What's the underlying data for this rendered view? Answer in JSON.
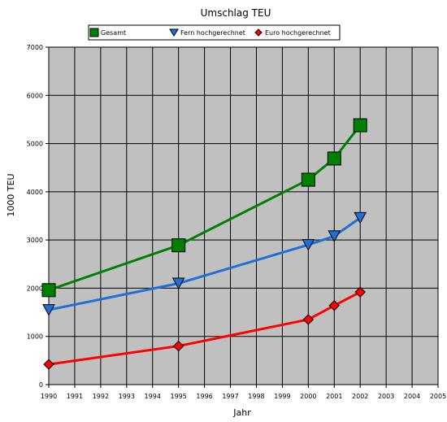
{
  "chart_data": {
    "type": "line",
    "title": "Umschlag TEU",
    "xlabel": "Jahr",
    "ylabel": "1000 TEU",
    "xlim": [
      1990,
      2005
    ],
    "ylim": [
      0,
      7000
    ],
    "x_ticks": [
      "1990",
      "1991",
      "1992",
      "1993",
      "1994",
      "1995",
      "1996",
      "1997",
      "1998",
      "1999",
      "2000",
      "2001",
      "2002",
      "2003",
      "2004",
      "2005"
    ],
    "y_ticks": [
      "0",
      "1000",
      "2000",
      "3000",
      "4000",
      "5000",
      "6000",
      "7000"
    ],
    "grid": true,
    "legend_position": "top",
    "series": [
      {
        "name": "Gesamt",
        "color": "#008000",
        "marker": "square",
        "x": [
          1990,
          1995,
          2000,
          2001,
          2002
        ],
        "y": [
          1960,
          2890,
          4250,
          4690,
          5380
        ]
      },
      {
        "name": "Fern hochgerechnet",
        "color": "#1e6fd6",
        "marker": "triangle-down",
        "x": [
          1990,
          1995,
          2000,
          2001,
          2002
        ],
        "y": [
          1550,
          2100,
          2900,
          3080,
          3460
        ]
      },
      {
        "name": "Euro hochgerechnet",
        "color": "#ff0000",
        "marker": "diamond",
        "x": [
          1990,
          1995,
          2000,
          2001,
          2002
        ],
        "y": [
          420,
          800,
          1350,
          1640,
          1920
        ]
      }
    ],
    "colors": {
      "plot_background": "#c0c0c0",
      "gridline": "#000000"
    }
  }
}
